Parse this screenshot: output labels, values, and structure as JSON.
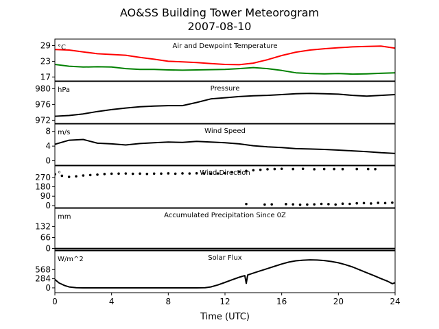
{
  "title_line1": "AO&SS Building Tower Meteorogram",
  "title_line2": "2007-08-10",
  "chart_data": {
    "type": "line",
    "xlabel": "Time (UTC)",
    "xlim": [
      0,
      24
    ],
    "xticks": [
      0,
      4,
      8,
      12,
      16,
      20,
      24
    ],
    "panels": [
      {
        "title": "Air and Dewpoint Temperature",
        "unit": "°C",
        "ylim": [
          15.5,
          31.5
        ],
        "yticks": [
          17,
          23,
          29
        ],
        "series": [
          {
            "name": "",
            "color": "#ff0000",
            "style": "line",
            "x": [
              0,
              1,
              2,
              3,
              4,
              5,
              6,
              7,
              8,
              9,
              10,
              11,
              12,
              13,
              14,
              15,
              16,
              17,
              18,
              19,
              20,
              21,
              22,
              23,
              24
            ],
            "y": [
              27.5,
              27.3,
              26.6,
              25.9,
              25.6,
              25.3,
              24.5,
              23.8,
              23.0,
              22.8,
              22.5,
              22.1,
              21.8,
              21.7,
              22.3,
              23.6,
              25.2,
              26.5,
              27.3,
              27.8,
              28.2,
              28.5,
              28.7,
              28.8,
              28.0
            ]
          },
          {
            "name": "",
            "color": "#008000",
            "style": "line",
            "x": [
              0,
              1,
              2,
              3,
              4,
              5,
              6,
              7,
              8,
              9,
              10,
              11,
              12,
              13,
              14,
              15,
              16,
              17,
              18,
              19,
              20,
              21,
              22,
              23,
              24
            ],
            "y": [
              21.8,
              21.1,
              20.8,
              20.9,
              20.8,
              20.2,
              19.9,
              19.9,
              19.7,
              19.6,
              19.7,
              19.8,
              19.9,
              20.2,
              20.6,
              20.2,
              19.5,
              18.6,
              18.3,
              18.2,
              18.3,
              18.1,
              18.2,
              18.4,
              18.6
            ]
          }
        ]
      },
      {
        "title": "Pressure",
        "unit": "hPa",
        "ylim": [
          971.2,
          981.8
        ],
        "yticks": [
          972,
          976,
          980
        ],
        "series": [
          {
            "name": "",
            "color": "#000000",
            "style": "line",
            "x": [
              0,
              1,
              2,
              3,
              4,
              5,
              6,
              7,
              8,
              9,
              10,
              11,
              12,
              13,
              14,
              15,
              16,
              17,
              18,
              19,
              20,
              21,
              22,
              23,
              24
            ],
            "y": [
              973.0,
              973.2,
              973.6,
              974.2,
              974.7,
              975.1,
              975.4,
              975.6,
              975.7,
              975.7,
              976.5,
              977.4,
              977.7,
              978.0,
              978.2,
              978.3,
              978.5,
              978.7,
              978.8,
              978.7,
              978.6,
              978.3,
              978.1,
              978.3,
              978.5
            ]
          }
        ]
      },
      {
        "title": "Wind Speed",
        "unit": "m/s",
        "ylim": [
          -1.2,
          10
        ],
        "yticks": [
          0,
          4,
          8
        ],
        "series": [
          {
            "name": "",
            "color": "#000000",
            "style": "line",
            "x": [
              0,
              1,
              2,
              3,
              4,
              5,
              6,
              7,
              8,
              9,
              10,
              11,
              12,
              13,
              14,
              15,
              16,
              17,
              18,
              19,
              20,
              21,
              22,
              23,
              24
            ],
            "y": [
              4.5,
              5.6,
              5.8,
              4.8,
              4.6,
              4.3,
              4.7,
              4.9,
              5.1,
              5.0,
              5.3,
              5.1,
              4.9,
              4.6,
              4.1,
              3.8,
              3.6,
              3.3,
              3.2,
              3.1,
              2.9,
              2.7,
              2.5,
              2.2,
              2.0
            ]
          }
        ]
      },
      {
        "title": "Wind Direction",
        "unit": "°",
        "ylim": [
          -20,
          380
        ],
        "yticks": [
          0,
          90,
          180,
          270
        ],
        "series": [
          {
            "name": "",
            "color": "#000000",
            "style": "points",
            "x": [
              0,
              0.5,
              1,
              1.5,
              2,
              2.5,
              3,
              3.5,
              4,
              4.5,
              5,
              5.5,
              6,
              6.5,
              7,
              7.5,
              8,
              8.5,
              9,
              9.5,
              10,
              10.5,
              11,
              11.5,
              12,
              12.5,
              13,
              13.5,
              14,
              14.5,
              15,
              15.5,
              16,
              16.8,
              17.5,
              18.3,
              19,
              19.7,
              20.3,
              21.3,
              22.1,
              22.6,
              13.5,
              14.8,
              15.3,
              16.3,
              16.8,
              17.3,
              17.8,
              18.3,
              18.8,
              19.3,
              19.8,
              20.3,
              20.8,
              21.3,
              21.8,
              22.3,
              22.8,
              23.3,
              23.8
            ],
            "y": [
              300,
              285,
              275,
              280,
              288,
              292,
              296,
              302,
              305,
              306,
              307,
              304,
              306,
              303,
              306,
              306,
              308,
              305,
              308,
              307,
              309,
              308,
              306,
              307,
              310,
              318,
              325,
              332,
              338,
              342,
              348,
              350,
              352,
              350,
              352,
              348,
              350,
              350,
              349,
              350,
              350,
              349,
              15,
              10,
              12,
              14,
              12,
              8,
              10,
              12,
              16,
              14,
              10,
              18,
              16,
              22,
              24,
              20,
              26,
              24,
              28
            ]
          }
        ]
      },
      {
        "title": "Accumulated Precipitation Since 0Z",
        "unit": "mm",
        "ylim": [
          -10,
          240
        ],
        "yticks": [
          0,
          66,
          132
        ],
        "series": [
          {
            "name": "",
            "color": "#000000",
            "style": "line",
            "x": [
              0,
              24
            ],
            "y": [
              0,
              0
            ]
          }
        ]
      },
      {
        "title": "Solar Flux",
        "unit": "W/m^2",
        "ylim": [
          -150,
          1150
        ],
        "yticks": [
          0,
          284,
          568
        ],
        "series": [
          {
            "name": "",
            "color": "#000000",
            "style": "line",
            "x": [
              0,
              0.3,
              0.7,
              1,
              1.5,
              2,
              4,
              6,
              8,
              10,
              10.6,
              11,
              11.5,
              12,
              12.5,
              13,
              13.4,
              13.5,
              13.6,
              14,
              14.5,
              15,
              15.5,
              16,
              16.5,
              17,
              17.5,
              18,
              18.5,
              19,
              19.5,
              20,
              20.5,
              21,
              21.5,
              22,
              22.5,
              23,
              23.5,
              23.8,
              24
            ],
            "y": [
              260,
              150,
              70,
              30,
              5,
              0,
              0,
              0,
              0,
              0,
              5,
              30,
              90,
              170,
              250,
              330,
              380,
              140,
              400,
              460,
              530,
              600,
              670,
              740,
              800,
              840,
              860,
              870,
              865,
              850,
              820,
              780,
              720,
              650,
              560,
              470,
              380,
              290,
              200,
              130,
              160
            ]
          }
        ]
      }
    ]
  }
}
